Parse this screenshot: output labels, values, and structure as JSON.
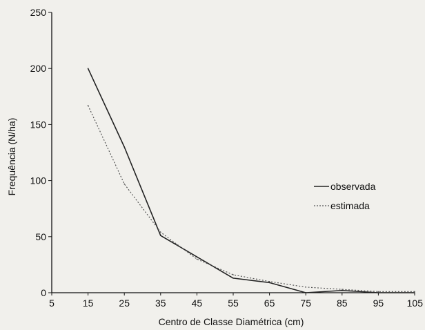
{
  "chart_data": {
    "type": "line",
    "title": "",
    "xlabel": "Centro de Classe Diamétrica (cm)",
    "ylabel": "Frequência (N/ha)",
    "xlim": [
      5,
      105
    ],
    "ylim": [
      0,
      250
    ],
    "x_ticks": [
      "5",
      "15",
      "25",
      "35",
      "45",
      "55",
      "65",
      "75",
      "85",
      "95",
      "105"
    ],
    "y_ticks": [
      "250",
      "200",
      "150",
      "100",
      "50",
      "0"
    ],
    "grid": false,
    "legend_position": "right",
    "series": [
      {
        "name": "observada",
        "style": "solid",
        "color": "#222222",
        "x": [
          15,
          25,
          35,
          45,
          55,
          65,
          75,
          85,
          95,
          105
        ],
        "y": [
          200,
          130,
          51,
          32,
          13,
          9,
          0,
          2,
          0,
          0
        ]
      },
      {
        "name": "estimada",
        "style": "dotted",
        "color": "#555555",
        "x": [
          15,
          25,
          35,
          45,
          55,
          65,
          75,
          85,
          95,
          105
        ],
        "y": [
          167,
          97,
          54,
          30,
          16,
          10,
          5,
          3,
          1,
          1
        ]
      }
    ]
  }
}
